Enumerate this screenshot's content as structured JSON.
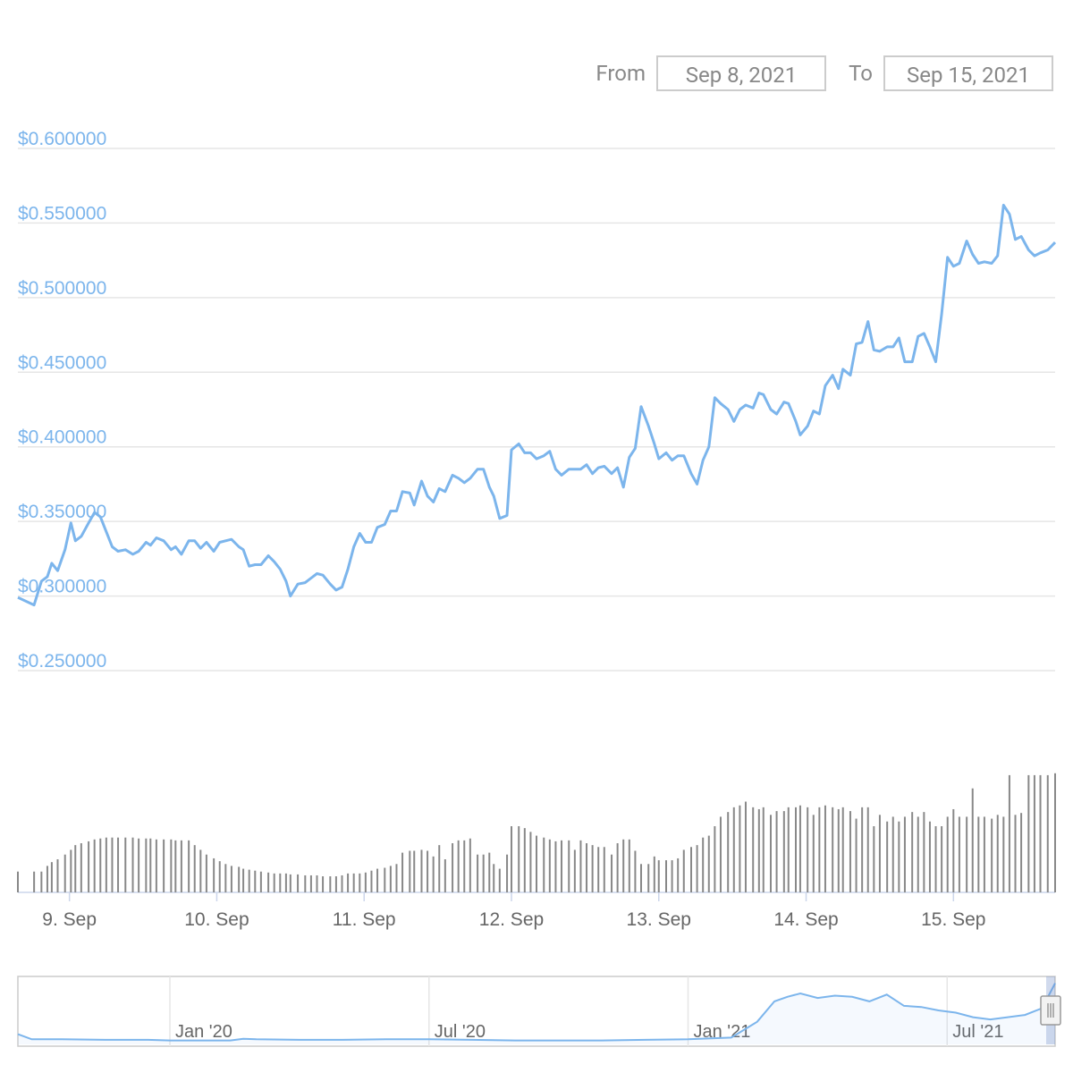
{
  "range_selector": {
    "from_label": "From",
    "from_value": "Sep 8, 2021",
    "to_label": "To",
    "to_value": "Sep 15, 2021"
  },
  "chart_data": [
    {
      "type": "line",
      "x": [
        8.65,
        8.76,
        8.81,
        8.85,
        8.88,
        8.92,
        8.97,
        9.01,
        9.04,
        9.08,
        9.13,
        9.17,
        9.21,
        9.25,
        9.29,
        9.33,
        9.38,
        9.43,
        9.47,
        9.52,
        9.55,
        9.59,
        9.64,
        9.69,
        9.72,
        9.76,
        9.81,
        9.85,
        9.89,
        9.93,
        9.98,
        10.02,
        10.06,
        10.1,
        10.15,
        10.18,
        10.22,
        10.26,
        10.3,
        10.35,
        10.39,
        10.43,
        10.47,
        10.5,
        10.55,
        10.6,
        10.64,
        10.68,
        10.72,
        10.77,
        10.81,
        10.85,
        10.89,
        10.93,
        10.97,
        11.01,
        11.05,
        11.09,
        11.14,
        11.18,
        11.22,
        11.26,
        11.31,
        11.34,
        11.39,
        11.43,
        11.47,
        11.51,
        11.55,
        11.6,
        11.64,
        11.68,
        11.72,
        11.77,
        11.81,
        11.85,
        11.88,
        11.92,
        11.97,
        12.0,
        12.05,
        12.09,
        12.13,
        12.17,
        12.22,
        12.26,
        12.3,
        12.34,
        12.39,
        12.43,
        12.47,
        12.51,
        12.55,
        12.59,
        12.63,
        12.68,
        12.72,
        12.76,
        12.8,
        12.84,
        12.88,
        12.93,
        12.97,
        13.0,
        13.05,
        13.09,
        13.13,
        13.17,
        13.22,
        13.26,
        13.3,
        13.34,
        13.38,
        13.42,
        13.47,
        13.51,
        13.55,
        13.59,
        13.64,
        13.68,
        13.71,
        13.76,
        13.8,
        13.85,
        13.88,
        13.93,
        13.96,
        14.01,
        14.05,
        14.09,
        14.13,
        14.18,
        14.22,
        14.25,
        14.3,
        14.34,
        14.38,
        14.42,
        14.46,
        14.5,
        14.55,
        14.59,
        14.63,
        14.67,
        14.72,
        14.76,
        14.8,
        14.84,
        14.88,
        14.92,
        14.96,
        15.0,
        15.04,
        15.09,
        15.13,
        15.17,
        15.21,
        15.26,
        15.3,
        15.34,
        15.38,
        15.42,
        15.46,
        15.51,
        15.55,
        15.59,
        15.64,
        15.69
      ],
      "series": [
        {
          "color": "#7cb5ec",
          "values": [
            0.299,
            0.294,
            0.31,
            0.313,
            0.322,
            0.317,
            0.331,
            0.349,
            0.337,
            0.34,
            0.349,
            0.356,
            0.353,
            0.343,
            0.333,
            0.33,
            0.331,
            0.328,
            0.33,
            0.336,
            0.334,
            0.339,
            0.337,
            0.331,
            0.333,
            0.328,
            0.337,
            0.337,
            0.332,
            0.336,
            0.33,
            0.336,
            0.337,
            0.338,
            0.333,
            0.331,
            0.32,
            0.321,
            0.321,
            0.327,
            0.323,
            0.318,
            0.31,
            0.3,
            0.308,
            0.309,
            0.312,
            0.315,
            0.314,
            0.308,
            0.304,
            0.306,
            0.318,
            0.333,
            0.342,
            0.336,
            0.336,
            0.346,
            0.348,
            0.357,
            0.357,
            0.37,
            0.369,
            0.361,
            0.377,
            0.367,
            0.363,
            0.372,
            0.37,
            0.381,
            0.379,
            0.376,
            0.379,
            0.385,
            0.385,
            0.373,
            0.367,
            0.352,
            0.354,
            0.398,
            0.402,
            0.396,
            0.396,
            0.392,
            0.394,
            0.397,
            0.385,
            0.381,
            0.385,
            0.385,
            0.385,
            0.388,
            0.382,
            0.386,
            0.387,
            0.382,
            0.386,
            0.373,
            0.393,
            0.399,
            0.427,
            0.414,
            0.402,
            0.392,
            0.396,
            0.391,
            0.394,
            0.394,
            0.382,
            0.375,
            0.391,
            0.4,
            0.433,
            0.429,
            0.425,
            0.417,
            0.425,
            0.428,
            0.426,
            0.436,
            0.435,
            0.425,
            0.422,
            0.43,
            0.429,
            0.417,
            0.408,
            0.414,
            0.424,
            0.422,
            0.441,
            0.448,
            0.439,
            0.452,
            0.448,
            0.469,
            0.47,
            0.484,
            0.465,
            0.464,
            0.467,
            0.467,
            0.473,
            0.457,
            0.457,
            0.474,
            0.476,
            0.467,
            0.457,
            0.489,
            0.527,
            0.521,
            0.523,
            0.538,
            0.529,
            0.523,
            0.524,
            0.523,
            0.528,
            0.562,
            0.556,
            0.539,
            0.541,
            0.532,
            0.528,
            0.53,
            0.532,
            0.537
          ]
        },
        {
          "type": "bar",
          "axis": "y2",
          "color": "#888888",
          "values": [
            22,
            22,
            22,
            28,
            32,
            35,
            40,
            45,
            50,
            52,
            54,
            56,
            57,
            58,
            58,
            58,
            58,
            58,
            57,
            57,
            57,
            56,
            56,
            56,
            55,
            55,
            55,
            50,
            45,
            40,
            36,
            33,
            30,
            28,
            27,
            25,
            24,
            23,
            22,
            21,
            20,
            20,
            20,
            19,
            19,
            18,
            18,
            18,
            17,
            17,
            17,
            18,
            20,
            20,
            20,
            21,
            23,
            25,
            26,
            28,
            30,
            42,
            44,
            44,
            45,
            44,
            38,
            50,
            35,
            52,
            55,
            55,
            57,
            40,
            40,
            42,
            30,
            25,
            40,
            70,
            70,
            68,
            64,
            60,
            58,
            56,
            54,
            55,
            55,
            45,
            55,
            52,
            50,
            48,
            48,
            40,
            52,
            56,
            56,
            44,
            30,
            30,
            38,
            34,
            34,
            34,
            36,
            45,
            48,
            50,
            58,
            60,
            70,
            80,
            85,
            90,
            92,
            96,
            90,
            88,
            90,
            82,
            86,
            86,
            90,
            90,
            92,
            90,
            82,
            90,
            92,
            90,
            88,
            90,
            86,
            78,
            90,
            90,
            70,
            82,
            75,
            80,
            75,
            80,
            85,
            80,
            85,
            75,
            70,
            70,
            80,
            88,
            80,
            80,
            110,
            80,
            80,
            78,
            82,
            80,
            124,
            82,
            84,
            124,
            124,
            124,
            124,
            126
          ]
        }
      ],
      "xlim": [
        8.65,
        15.69
      ],
      "xticks": [
        {
          "value": 9,
          "label": "9. Sep"
        },
        {
          "value": 10,
          "label": "10. Sep"
        },
        {
          "value": 11,
          "label": "11. Sep"
        },
        {
          "value": 12,
          "label": "12. Sep"
        },
        {
          "value": 13,
          "label": "13. Sep"
        },
        {
          "value": 14,
          "label": "14. Sep"
        },
        {
          "value": 15,
          "label": "15. Sep"
        }
      ],
      "ylim": [
        0.25,
        0.6
      ],
      "yticks": [
        {
          "value": 0.25,
          "label": "$0.250000"
        },
        {
          "value": 0.3,
          "label": "$0.300000"
        },
        {
          "value": 0.35,
          "label": "$0.350000"
        },
        {
          "value": 0.4,
          "label": "$0.400000"
        },
        {
          "value": 0.45,
          "label": "$0.450000"
        },
        {
          "value": 0.5,
          "label": "$0.500000"
        },
        {
          "value": 0.55,
          "label": "$0.550000"
        },
        {
          "value": 0.6,
          "label": "$0.600000"
        }
      ],
      "y2lim": [
        0,
        140
      ],
      "grid": true
    },
    {
      "type": "area",
      "color": "#7cb5ec",
      "x": [
        -3.52,
        -3.2,
        -2.5,
        -1.5,
        -0.5,
        0,
        1,
        1.4,
        1.7,
        2,
        3,
        4,
        5,
        6,
        7,
        8,
        9,
        10,
        11,
        12,
        13,
        13.6,
        14,
        14.3,
        14.6,
        15,
        15.4,
        15.8,
        16.2,
        16.6,
        17,
        17.4,
        17.8,
        18.2,
        18.6,
        19,
        19.4,
        19.8,
        20.2,
        20.5
      ],
      "values": [
        0.09,
        0.045,
        0.045,
        0.04,
        0.04,
        0.035,
        0.035,
        0.035,
        0.05,
        0.045,
        0.04,
        0.04,
        0.045,
        0.045,
        0.04,
        0.035,
        0.035,
        0.035,
        0.04,
        0.045,
        0.06,
        0.2,
        0.38,
        0.42,
        0.45,
        0.41,
        0.43,
        0.42,
        0.38,
        0.44,
        0.34,
        0.33,
        0.3,
        0.28,
        0.24,
        0.22,
        0.24,
        0.26,
        0.32,
        0.54
      ],
      "xlim": [
        -3.52,
        20.5
      ],
      "ylim": [
        0,
        0.6
      ],
      "xticks": [
        {
          "value": 0,
          "label": "Jan '20"
        },
        {
          "value": 6,
          "label": "Jul '20"
        },
        {
          "value": 12,
          "label": "Jan '21"
        },
        {
          "value": 18,
          "label": "Jul '21"
        }
      ]
    }
  ]
}
